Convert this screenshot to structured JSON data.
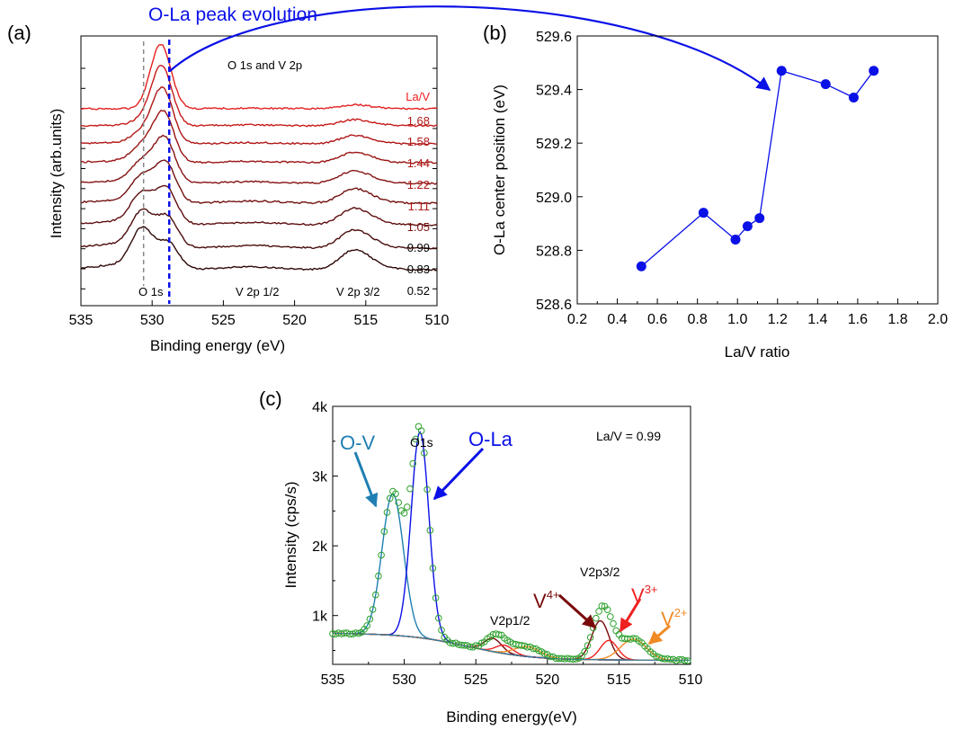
{
  "panel_labels": {
    "a": "(a)",
    "b": "(b)",
    "c": "(c)"
  },
  "colors": {
    "blue": "#0a10e6",
    "ov": "#1f7fb3",
    "green": "#2ca02c",
    "dark_red": "#7a0a0a",
    "red": "#ee2020",
    "orange": "#f08a24",
    "axis": "#000000",
    "ratio_label": "#b01818"
  },
  "annotations": {
    "title": "O-La peak evolution",
    "o1s_v2p": "O 1s and V 2p",
    "o1s": "O 1s",
    "v2p12": "V 2p 1/2",
    "v2p32": "V 2p 3/2",
    "c_o1s": "O1s",
    "c_ov": "O-V",
    "c_ola": "O-La",
    "c_v2p12": "V2p1/2",
    "c_v2p32": "V2p3/2",
    "c_ratio": "La/V = 0.99",
    "v4": {
      "base": "V",
      "sup": "4+"
    },
    "v3": {
      "base": "V",
      "sup": "3+"
    },
    "v2": {
      "base": "V",
      "sup": "2+"
    }
  },
  "chart_data": [
    {
      "id": "a",
      "type": "line",
      "xlabel": "Binding energy (eV)",
      "ylabel": "Intensity (arb.units)",
      "xlim": [
        535,
        510
      ],
      "xticks": [
        535,
        530,
        525,
        520,
        515,
        510
      ],
      "legend_title": "La/V",
      "ratios": [
        "1.68",
        "1.58",
        "1.44",
        "1.22",
        "1.11",
        "1.05",
        "0.99",
        "0.83",
        "0.52"
      ],
      "reference_lines": {
        "O1s_grey_dashed": 530.6,
        "OLa_blue_dashed": 528.8
      }
    },
    {
      "id": "b",
      "type": "scatter",
      "xlabel": "La/V ratio",
      "ylabel": "O-La center position (eV)",
      "xlim": [
        0.2,
        2.0
      ],
      "ylim": [
        528.6,
        529.6
      ],
      "xticks": [
        "0.2",
        "0.4",
        "0.6",
        "0.8",
        "1.0",
        "1.2",
        "1.4",
        "1.6",
        "1.8",
        "2.0"
      ],
      "yticks": [
        "528.6",
        "528.8",
        "529.0",
        "529.2",
        "529.4",
        "529.6"
      ],
      "x": [
        0.52,
        0.83,
        0.99,
        1.05,
        1.11,
        1.22,
        1.44,
        1.58,
        1.68
      ],
      "y": [
        528.74,
        528.94,
        528.84,
        528.89,
        528.92,
        529.47,
        529.42,
        529.37,
        529.47
      ]
    },
    {
      "id": "c",
      "type": "line",
      "xlabel": "Binding energy(eV)",
      "ylabel": "Intensity (cps/s)",
      "xlim": [
        535,
        510
      ],
      "ylim": [
        300,
        4000
      ],
      "xticks": [
        535,
        530,
        525,
        520,
        515,
        510
      ],
      "yticks": [
        {
          "v": 1000,
          "l": "1k"
        },
        {
          "v": 2000,
          "l": "2k"
        },
        {
          "v": 3000,
          "l": "3k"
        },
        {
          "v": 4000,
          "l": "4k"
        }
      ],
      "components": [
        {
          "name": "O-V",
          "center": 530.8,
          "height": 2030,
          "width": 0.75
        },
        {
          "name": "O-La",
          "center": 528.9,
          "height": 2950,
          "width": 0.62
        },
        {
          "name": "V4+ 2p3/2",
          "center": 516.3,
          "height": 560,
          "width": 0.6
        },
        {
          "name": "V3+ 2p3/2",
          "center": 515.7,
          "height": 280,
          "width": 0.6
        },
        {
          "name": "V2+ 2p3/2",
          "center": 514.0,
          "height": 300,
          "width": 0.9
        },
        {
          "name": "V4+ 2p1/2",
          "center": 523.8,
          "height": 190,
          "width": 0.6
        },
        {
          "name": "V3+ 2p1/2",
          "center": 523.0,
          "height": 120,
          "width": 0.6
        },
        {
          "name": "V2+ 2p1/2",
          "center": 521.4,
          "height": 140,
          "width": 0.9
        }
      ]
    }
  ]
}
